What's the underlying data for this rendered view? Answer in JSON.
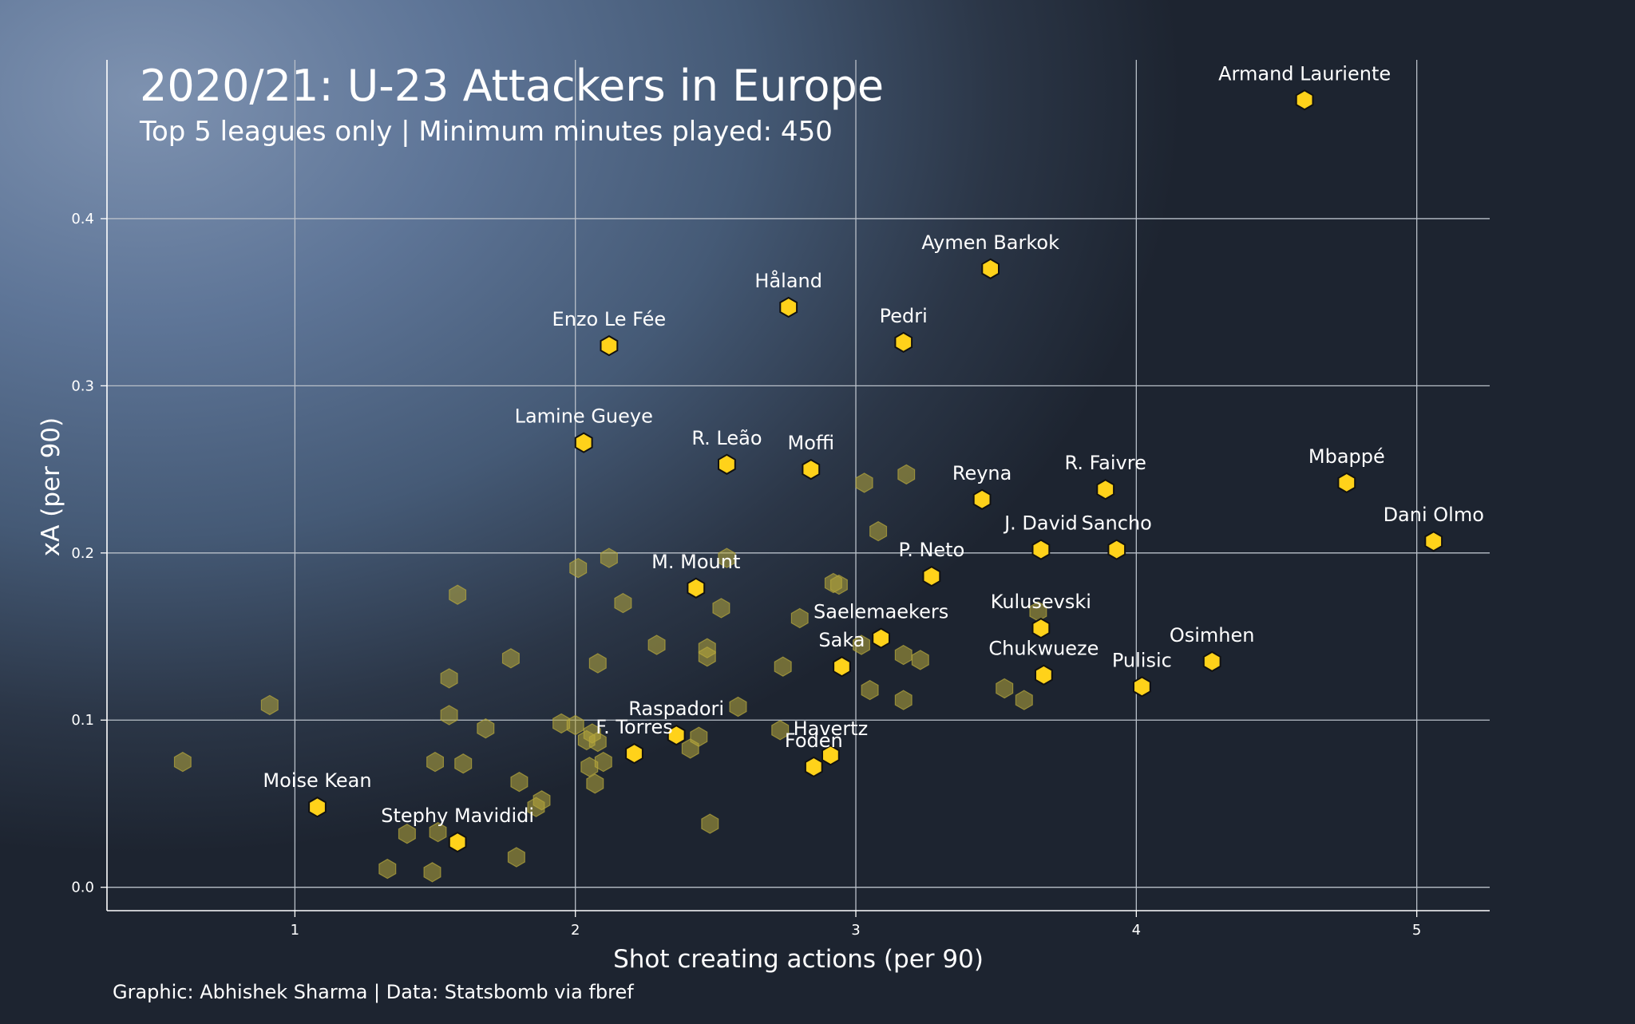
{
  "chart_data": {
    "type": "scatter",
    "title": "2020/21: U-23 Attackers in Europe",
    "subtitle": "Top 5 leagues only | Minimum minutes played: 450",
    "xlabel": "Shot creating actions (per 90)",
    "ylabel": "xA (per 90)",
    "credit": "Graphic: Abhishek Sharma | Data: Statsbomb via fbref",
    "xlim": [
      0.33,
      5.26
    ],
    "ylim": [
      -0.014,
      0.495
    ],
    "xticks": [
      1,
      2,
      3,
      4,
      5
    ],
    "xtick_labels": [
      "1",
      "2",
      "3",
      "4",
      "5"
    ],
    "yticks": [
      0.0,
      0.1,
      0.2,
      0.3,
      0.4
    ],
    "ytick_labels": [
      "0.0",
      "0.1",
      "0.2",
      "0.3",
      "0.4"
    ],
    "grid": true,
    "colors": {
      "highlight": "#ffd21a",
      "highlight_edge": "#111111",
      "background_point": "#b6a83c",
      "text": "#ffffff",
      "grid": "#b9c0c9"
    },
    "highlighted": [
      {
        "label": "Armand Lauriente",
        "x": 4.6,
        "y": 0.471
      },
      {
        "label": "Aymen Barkok",
        "x": 3.48,
        "y": 0.37
      },
      {
        "label": "Håland",
        "x": 2.76,
        "y": 0.347
      },
      {
        "label": "Pedri",
        "x": 3.17,
        "y": 0.326
      },
      {
        "label": "Enzo Le Fée",
        "x": 2.12,
        "y": 0.324
      },
      {
        "label": "Lamine Gueye",
        "x": 2.03,
        "y": 0.266
      },
      {
        "label": "R. Leão",
        "x": 2.54,
        "y": 0.253
      },
      {
        "label": "Moffi",
        "x": 2.84,
        "y": 0.25
      },
      {
        "label": "Reyna",
        "x": 3.45,
        "y": 0.232
      },
      {
        "label": "R. Faivre",
        "x": 3.89,
        "y": 0.238
      },
      {
        "label": "Mbappé",
        "x": 4.75,
        "y": 0.242
      },
      {
        "label": "Dani Olmo",
        "x": 5.06,
        "y": 0.207
      },
      {
        "label": "J. David",
        "x": 3.66,
        "y": 0.202
      },
      {
        "label": "Sancho",
        "x": 3.93,
        "y": 0.202
      },
      {
        "label": "P. Neto",
        "x": 3.27,
        "y": 0.186
      },
      {
        "label": "M. Mount",
        "x": 2.43,
        "y": 0.179
      },
      {
        "label": "Kulusevski",
        "x": 3.66,
        "y": 0.155
      },
      {
        "label": "Saelemaekers",
        "x": 3.09,
        "y": 0.149
      },
      {
        "label": "Saka",
        "x": 2.95,
        "y": 0.132
      },
      {
        "label": "Osimhen",
        "x": 4.27,
        "y": 0.135
      },
      {
        "label": "Chukwueze",
        "x": 3.67,
        "y": 0.127
      },
      {
        "label": "Pulisic",
        "x": 4.02,
        "y": 0.12
      },
      {
        "label": "Raspadori",
        "x": 2.36,
        "y": 0.091
      },
      {
        "label": "F. Torres",
        "x": 2.21,
        "y": 0.08
      },
      {
        "label": "Havertz",
        "x": 2.91,
        "y": 0.079
      },
      {
        "label": "Foden",
        "x": 2.85,
        "y": 0.072
      },
      {
        "label": "Moise Kean",
        "x": 1.08,
        "y": 0.048
      },
      {
        "label": "Stephy Mavididi",
        "x": 1.58,
        "y": 0.027
      }
    ],
    "others": [
      {
        "x": 0.6,
        "y": 0.075
      },
      {
        "x": 0.91,
        "y": 0.109
      },
      {
        "x": 1.33,
        "y": 0.011
      },
      {
        "x": 1.4,
        "y": 0.032
      },
      {
        "x": 1.49,
        "y": 0.009
      },
      {
        "x": 1.5,
        "y": 0.075
      },
      {
        "x": 1.51,
        "y": 0.033
      },
      {
        "x": 1.55,
        "y": 0.125
      },
      {
        "x": 1.55,
        "y": 0.103
      },
      {
        "x": 1.58,
        "y": 0.175
      },
      {
        "x": 1.6,
        "y": 0.074
      },
      {
        "x": 1.68,
        "y": 0.095
      },
      {
        "x": 1.77,
        "y": 0.137
      },
      {
        "x": 1.79,
        "y": 0.018
      },
      {
        "x": 1.8,
        "y": 0.063
      },
      {
        "x": 1.86,
        "y": 0.048
      },
      {
        "x": 1.88,
        "y": 0.052
      },
      {
        "x": 1.95,
        "y": 0.098
      },
      {
        "x": 2.0,
        "y": 0.097
      },
      {
        "x": 2.01,
        "y": 0.191
      },
      {
        "x": 2.04,
        "y": 0.088
      },
      {
        "x": 2.05,
        "y": 0.072
      },
      {
        "x": 2.06,
        "y": 0.092
      },
      {
        "x": 2.07,
        "y": 0.062
      },
      {
        "x": 2.08,
        "y": 0.087
      },
      {
        "x": 2.08,
        "y": 0.134
      },
      {
        "x": 2.1,
        "y": 0.075
      },
      {
        "x": 2.12,
        "y": 0.197
      },
      {
        "x": 2.17,
        "y": 0.17
      },
      {
        "x": 2.29,
        "y": 0.145
      },
      {
        "x": 2.41,
        "y": 0.083
      },
      {
        "x": 2.44,
        "y": 0.09
      },
      {
        "x": 2.47,
        "y": 0.143
      },
      {
        "x": 2.47,
        "y": 0.138
      },
      {
        "x": 2.48,
        "y": 0.038
      },
      {
        "x": 2.52,
        "y": 0.167
      },
      {
        "x": 2.54,
        "y": 0.197
      },
      {
        "x": 2.58,
        "y": 0.108
      },
      {
        "x": 2.73,
        "y": 0.094
      },
      {
        "x": 2.74,
        "y": 0.132
      },
      {
        "x": 2.8,
        "y": 0.161
      },
      {
        "x": 2.92,
        "y": 0.182
      },
      {
        "x": 2.94,
        "y": 0.181
      },
      {
        "x": 3.02,
        "y": 0.145
      },
      {
        "x": 3.03,
        "y": 0.242
      },
      {
        "x": 3.05,
        "y": 0.118
      },
      {
        "x": 3.08,
        "y": 0.213
      },
      {
        "x": 3.17,
        "y": 0.139
      },
      {
        "x": 3.17,
        "y": 0.112
      },
      {
        "x": 3.18,
        "y": 0.247
      },
      {
        "x": 3.23,
        "y": 0.136
      },
      {
        "x": 3.53,
        "y": 0.119
      },
      {
        "x": 3.6,
        "y": 0.112
      },
      {
        "x": 3.65,
        "y": 0.165
      }
    ]
  }
}
